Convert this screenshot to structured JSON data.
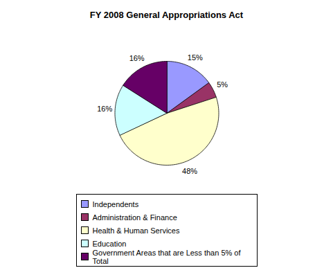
{
  "chart_data": {
    "type": "pie",
    "title": "FY 2008 General Appropriations Act",
    "categories": [
      "Independents",
      "Administration & Finance",
      "Health & Human Services",
      "Education",
      "Government Areas that are Less than 5% of Total"
    ],
    "values": [
      15,
      5,
      48,
      16,
      16
    ],
    "value_labels": [
      "15%",
      "5%",
      "48%",
      "16%",
      "16%"
    ],
    "colors": [
      "#9999ff",
      "#993366",
      "#ffffcc",
      "#ccffff",
      "#660066"
    ],
    "data_labels": true,
    "legend": "bottom"
  }
}
